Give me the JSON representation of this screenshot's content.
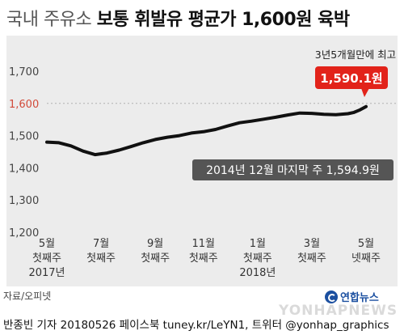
{
  "title_light": "국내 주유소",
  "title_bold": "보통 휘발유 평균가 1,600원 육박",
  "source": "자료/오피넷",
  "credit": "반종빈 기자 20180526 페이스북 tuney.kr/LeYN1, 트위터 @yonhap_graphics",
  "logo_text": "연합뉴스",
  "watermark": "YONHAPNEWS",
  "colors": {
    "line": "#111111",
    "highlight": "#e2231a",
    "ref_line": "#999999",
    "highlight_tick": "#d24a3a",
    "bg": "#ececec"
  },
  "chart_data": {
    "type": "line",
    "unit": "원",
    "ylim": [
      1200,
      1700
    ],
    "yticks": [
      {
        "value": 1700,
        "label": "1,700"
      },
      {
        "value": 1600,
        "label": "1,600"
      },
      {
        "value": 1500,
        "label": "1,500"
      },
      {
        "value": 1400,
        "label": "1,400"
      },
      {
        "value": 1300,
        "label": "1,300"
      },
      {
        "value": 1200,
        "label": "1,200"
      }
    ],
    "highlight_tick": 1600,
    "reference_line": {
      "value": 1594.9,
      "label": "2014년 12월 마지막 주 1,594.9원"
    },
    "xticks": [
      {
        "week": 0,
        "lines": [
          "5월",
          "첫째주",
          "2017년"
        ]
      },
      {
        "week": 9,
        "lines": [
          "7월",
          "첫째주"
        ]
      },
      {
        "week": 18,
        "lines": [
          "9월",
          "첫째주"
        ]
      },
      {
        "week": 26,
        "lines": [
          "11월",
          "첫째주"
        ]
      },
      {
        "week": 35,
        "lines": [
          "1월",
          "첫째주",
          "2018년"
        ]
      },
      {
        "week": 44,
        "lines": [
          "3월",
          "첫째주"
        ]
      },
      {
        "week": 53,
        "lines": [
          "5월",
          "넷째주"
        ]
      }
    ],
    "series": [
      {
        "points": [
          [
            0,
            1480
          ],
          [
            2,
            1478
          ],
          [
            4,
            1468
          ],
          [
            6,
            1452
          ],
          [
            8,
            1441
          ],
          [
            10,
            1446
          ],
          [
            12,
            1455
          ],
          [
            14,
            1466
          ],
          [
            16,
            1478
          ],
          [
            18,
            1488
          ],
          [
            20,
            1495
          ],
          [
            22,
            1500
          ],
          [
            24,
            1508
          ],
          [
            26,
            1512
          ],
          [
            28,
            1519
          ],
          [
            30,
            1530
          ],
          [
            32,
            1540
          ],
          [
            34,
            1545
          ],
          [
            36,
            1551
          ],
          [
            38,
            1557
          ],
          [
            40,
            1564
          ],
          [
            42,
            1570
          ],
          [
            44,
            1569
          ],
          [
            46,
            1566
          ],
          [
            48,
            1565
          ],
          [
            50,
            1568
          ],
          [
            51,
            1572
          ],
          [
            52,
            1580
          ],
          [
            53,
            1590.1
          ]
        ]
      }
    ],
    "annotations": {
      "last_value_label": "1,590.1원",
      "last_value_note": "3년5개월만에 최고"
    }
  }
}
